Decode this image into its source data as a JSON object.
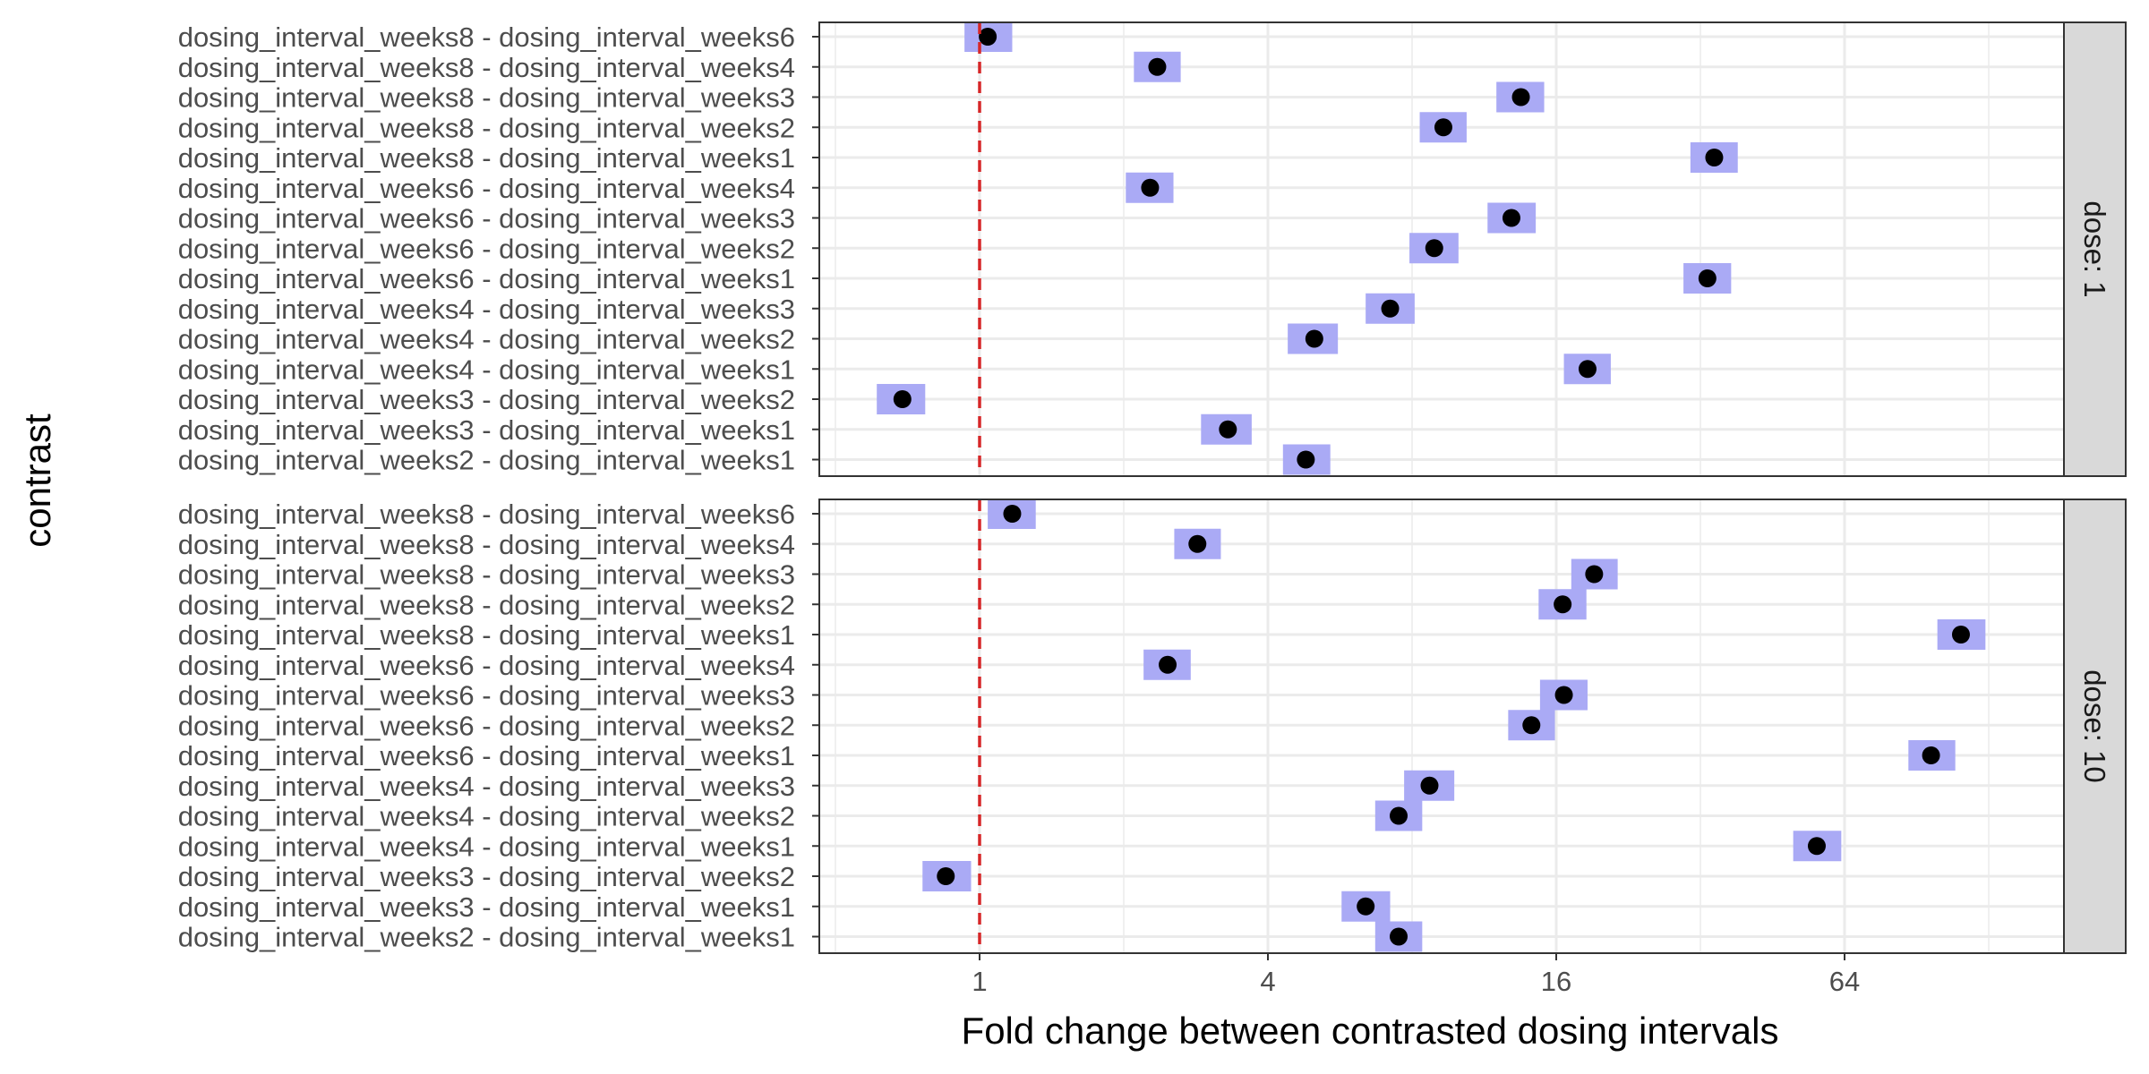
{
  "chart_data": {
    "type": "scatter",
    "xlabel": "Fold change between contrasted dosing intervals",
    "ylabel": "contrast",
    "x_scale": "log2",
    "xlim": [
      0.5,
      150
    ],
    "x_ticks": [
      1,
      4,
      16,
      64
    ],
    "x_tick_labels": [
      "1",
      "4",
      "16",
      "64"
    ],
    "reference_line": {
      "x": 1,
      "color": "#d62728",
      "style": "dashed"
    },
    "colors": {
      "point": "#000000",
      "interval": "#aaaaf5",
      "strip_bg": "#d9d9d9",
      "grid": "#ebebeb"
    },
    "grid": true,
    "contrasts": [
      "dosing_interval_weeks8 - dosing_interval_weeks6",
      "dosing_interval_weeks8 - dosing_interval_weeks4",
      "dosing_interval_weeks8 - dosing_interval_weeks3",
      "dosing_interval_weeks8 - dosing_interval_weeks2",
      "dosing_interval_weeks8 - dosing_interval_weeks1",
      "dosing_interval_weeks6 - dosing_interval_weeks4",
      "dosing_interval_weeks6 - dosing_interval_weeks3",
      "dosing_interval_weeks6 - dosing_interval_weeks2",
      "dosing_interval_weeks6 - dosing_interval_weeks1",
      "dosing_interval_weeks4 - dosing_interval_weeks3",
      "dosing_interval_weeks4 - dosing_interval_weeks2",
      "dosing_interval_weeks4 - dosing_interval_weeks1",
      "dosing_interval_weeks3 - dosing_interval_weeks2",
      "dosing_interval_weeks3 - dosing_interval_weeks1",
      "dosing_interval_weeks2 - dosing_interval_weeks1"
    ],
    "panels": [
      {
        "strip_label": "dose: 1",
        "estimates": [
          1.04,
          2.35,
          13.5,
          9.3,
          34.2,
          2.27,
          12.9,
          8.9,
          33.1,
          7.2,
          5.0,
          18.6,
          0.69,
          3.3,
          4.8
        ],
        "lower": [
          0.93,
          2.1,
          12.0,
          8.3,
          30.5,
          2.02,
          11.5,
          7.9,
          29.5,
          6.4,
          4.4,
          16.6,
          0.61,
          2.9,
          4.3
        ],
        "upper": [
          1.17,
          2.63,
          15.1,
          10.4,
          38.3,
          2.54,
          14.5,
          10.0,
          37.1,
          8.1,
          5.6,
          20.8,
          0.77,
          3.7,
          5.4
        ]
      },
      {
        "strip_label": "dose: 10",
        "estimates": [
          1.17,
          2.85,
          19.2,
          16.5,
          112,
          2.47,
          16.6,
          14.2,
          97,
          8.7,
          7.5,
          56,
          0.85,
          6.4,
          7.5
        ],
        "lower": [
          1.04,
          2.55,
          17.2,
          14.7,
          100,
          2.2,
          14.8,
          12.7,
          87,
          7.7,
          6.7,
          50,
          0.76,
          5.7,
          6.7
        ],
        "upper": [
          1.31,
          3.19,
          21.5,
          18.5,
          126,
          2.76,
          18.6,
          15.9,
          109,
          9.8,
          8.4,
          63,
          0.96,
          7.2,
          8.4
        ]
      }
    ]
  }
}
